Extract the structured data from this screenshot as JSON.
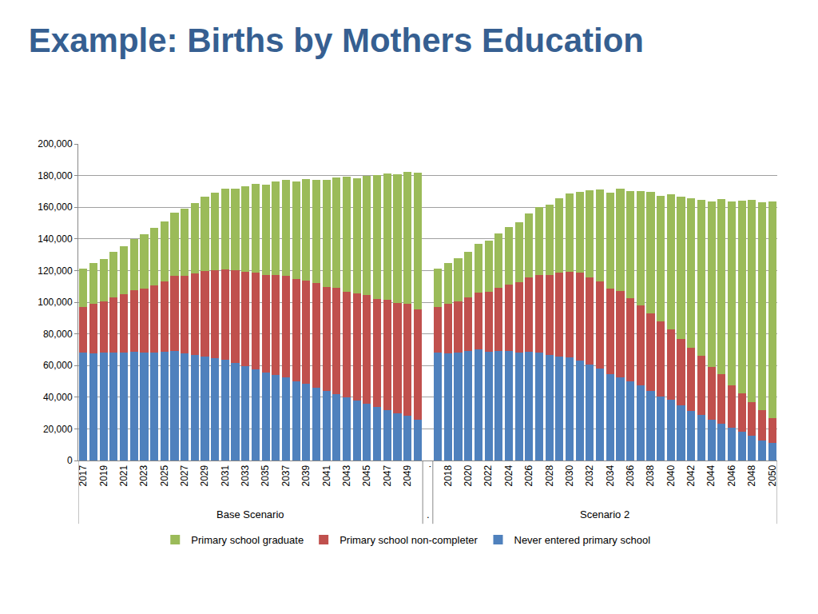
{
  "chart_data": {
    "type": "bar",
    "title": "Example: Births by Mothers Education",
    "stacked": true,
    "grid": true,
    "legend": "bottom",
    "categories": [
      "2017",
      null,
      "2019",
      null,
      "2021",
      null,
      "2023",
      null,
      "2025",
      null,
      "2027",
      null,
      "2029",
      null,
      "2031",
      null,
      "2033",
      null,
      "2035",
      null,
      "2037",
      null,
      "2039",
      null,
      "2041",
      null,
      "2043",
      null,
      "2045",
      null,
      "2047",
      null,
      "2049",
      null,
      ".",
      null,
      "2018",
      null,
      "2020",
      null,
      "2022",
      null,
      "2024",
      null,
      "2026",
      null,
      "2028",
      null,
      "2030",
      null,
      "2032",
      null,
      "2034",
      null,
      "2036",
      null,
      "2038",
      null,
      "2040",
      null,
      "2042",
      null,
      "2044",
      null,
      "2046",
      null,
      "2048",
      null,
      "2050"
    ],
    "groups": [
      {
        "label": "Base Scenario",
        "count": 34
      },
      {
        "label": ".",
        "count": 1
      },
      {
        "label": "Scenario 2",
        "count": 34
      }
    ],
    "ylim": [
      0,
      200000
    ],
    "yticks": [
      0,
      {
        "value": 20000,
        "label": "20,000"
      },
      {
        "value": 40000,
        "label": "40,000"
      },
      {
        "value": 60000,
        "label": "60,000"
      },
      {
        "value": 80000,
        "label": "80,000"
      },
      {
        "value": 100000,
        "label": "100,000"
      },
      {
        "value": 120000,
        "label": "120,000"
      },
      {
        "value": 140000,
        "label": "140,000"
      },
      {
        "value": 160000,
        "label": "160,000"
      },
      {
        "value": 180000,
        "label": "180,000"
      },
      {
        "value": 200000,
        "label": "200,000"
      }
    ],
    "series": [
      {
        "name": "Never entered primary school",
        "color": "#4f81bd",
        "values": [
          68000,
          67500,
          68000,
          68000,
          68000,
          68500,
          68000,
          68000,
          68500,
          69000,
          67500,
          66500,
          65500,
          64500,
          63500,
          61500,
          59500,
          57500,
          55500,
          54000,
          52500,
          50000,
          48500,
          46000,
          44000,
          42000,
          40000,
          38000,
          36000,
          34000,
          32000,
          30000,
          28500,
          26000,
          null,
          68000,
          67500,
          68000,
          69000,
          70000,
          68500,
          69000,
          69000,
          68000,
          68500,
          68000,
          66500,
          65500,
          65000,
          63000,
          60500,
          58000,
          54500,
          52500,
          50000,
          47500,
          44000,
          40500,
          38500,
          35000,
          31500,
          29000,
          26000,
          23000,
          20500,
          18000,
          15500,
          12500,
          11000
        ]
      },
      {
        "name": "Primary school non-completer",
        "color": "#c0504d",
        "values": [
          29000,
          31500,
          32500,
          35000,
          37000,
          39000,
          40500,
          42500,
          44500,
          47500,
          49000,
          51500,
          54000,
          55500,
          57000,
          58500,
          59500,
          61000,
          61500,
          63000,
          64000,
          64500,
          65000,
          66000,
          65500,
          67000,
          66500,
          67500,
          68500,
          68000,
          69500,
          69500,
          70500,
          69500,
          null,
          29000,
          31500,
          32500,
          34000,
          36000,
          38000,
          40000,
          42000,
          44500,
          47000,
          49000,
          50500,
          53000,
          54000,
          55500,
          55000,
          55000,
          54000,
          54500,
          52500,
          50500,
          49000,
          47500,
          44500,
          42000,
          39500,
          37000,
          33000,
          31500,
          27000,
          24500,
          21500,
          19500,
          16000
        ]
      },
      {
        "name": "Primary school graduate",
        "color": "#9bbb59",
        "values": [
          24000,
          26000,
          27000,
          29000,
          30500,
          32500,
          34500,
          36500,
          38000,
          40000,
          42500,
          44500,
          47000,
          49000,
          51000,
          51500,
          54000,
          56000,
          57000,
          59500,
          61000,
          62000,
          64500,
          65500,
          68000,
          70000,
          73000,
          73000,
          75500,
          78500,
          80000,
          81500,
          83500,
          86500,
          null,
          24000,
          25500,
          27500,
          29000,
          31000,
          32500,
          34500,
          36500,
          38000,
          40500,
          43000,
          44500,
          47000,
          49500,
          51000,
          55000,
          58000,
          60500,
          64500,
          67500,
          72000,
          76500,
          79000,
          85000,
          89500,
          94500,
          98500,
          104500,
          110500,
          116000,
          121500,
          127500,
          131000,
          136500
        ]
      }
    ]
  }
}
